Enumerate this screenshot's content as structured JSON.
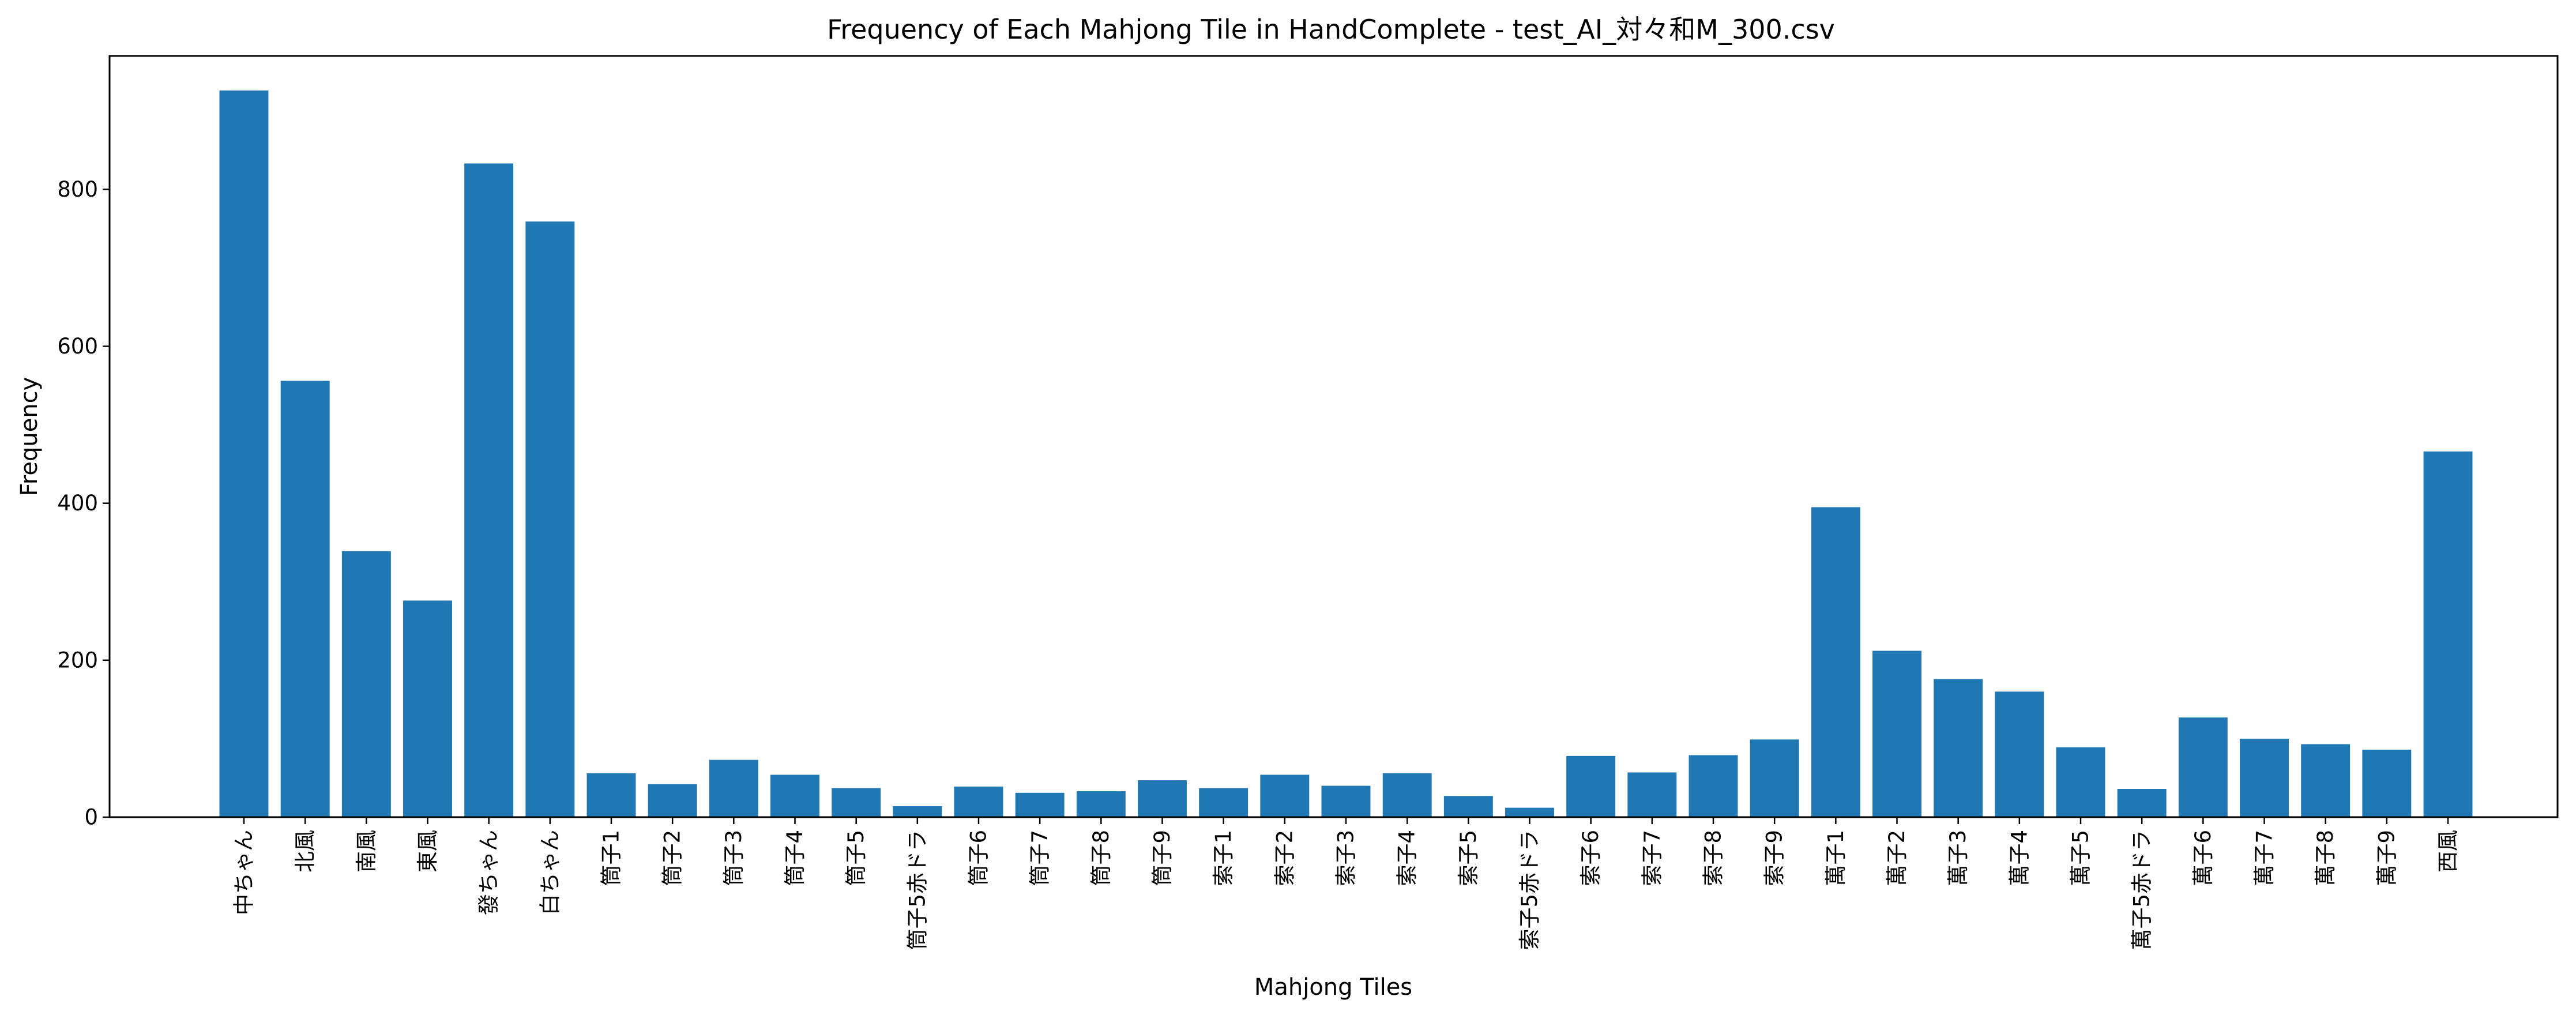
{
  "chart_data": {
    "type": "bar",
    "title": "Frequency of Each Mahjong Tile in HandComplete - test_AI_対々和M_300.csv",
    "xlabel": "Mahjong Tiles",
    "ylabel": "Frequency",
    "ylim": [
      0,
      970
    ],
    "yticks": [
      0,
      200,
      400,
      600,
      800
    ],
    "grid": false,
    "bar_color": "#1f77b4",
    "categories": [
      "中ちゃん",
      "北風",
      "南風",
      "東風",
      "發ちゃん",
      "白ちゃん",
      "筒子1",
      "筒子2",
      "筒子3",
      "筒子4",
      "筒子5",
      "筒子5赤ドラ",
      "筒子6",
      "筒子7",
      "筒子8",
      "筒子9",
      "索子1",
      "索子2",
      "索子3",
      "索子4",
      "索子5",
      "索子5赤ドラ",
      "索子6",
      "索子7",
      "索子8",
      "索子9",
      "萬子1",
      "萬子2",
      "萬子3",
      "萬子4",
      "萬子5",
      "萬子5赤ドラ",
      "萬子6",
      "萬子7",
      "萬子8",
      "萬子9",
      "西風"
    ],
    "values": [
      926,
      556,
      339,
      276,
      833,
      759,
      56,
      42,
      73,
      54,
      37,
      14,
      39,
      31,
      33,
      47,
      37,
      54,
      40,
      56,
      27,
      12,
      78,
      57,
      79,
      99,
      395,
      212,
      176,
      160,
      89,
      36,
      127,
      100,
      93,
      86,
      466
    ]
  }
}
